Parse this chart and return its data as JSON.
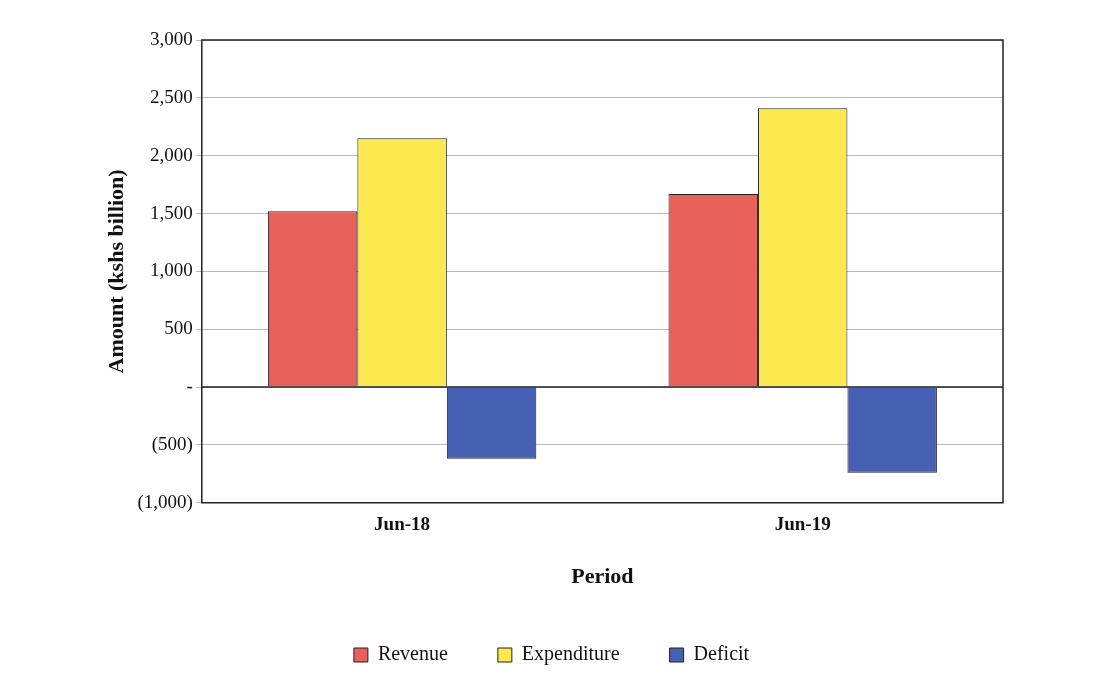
{
  "chart_data": {
    "type": "bar",
    "categories": [
      "Jun-18",
      "Jun-19"
    ],
    "series": [
      {
        "name": "Revenue",
        "color": "#e8605a",
        "values": [
          1520,
          1670
        ]
      },
      {
        "name": "Expenditure",
        "color": "#fce94f",
        "values": [
          2150,
          2410
        ]
      },
      {
        "name": "Deficit",
        "color": "#4660b4",
        "values": [
          -620,
          -740
        ]
      }
    ],
    "xlabel": "Period",
    "ylabel": "Amount (kshs billion)",
    "ylim": [
      -1000,
      3000
    ],
    "yticks": [
      {
        "value": -1000,
        "label": "(1,000)"
      },
      {
        "value": -500,
        "label": "(500)"
      },
      {
        "value": 0,
        "label": "-"
      },
      {
        "value": 500,
        "label": "500"
      },
      {
        "value": 1000,
        "label": "1,000"
      },
      {
        "value": 1500,
        "label": "1,500"
      },
      {
        "value": 2000,
        "label": "2,000"
      },
      {
        "value": 2500,
        "label": "2,500"
      },
      {
        "value": 3000,
        "label": "3,000"
      }
    ],
    "grid": "y",
    "legend": "bottom"
  }
}
